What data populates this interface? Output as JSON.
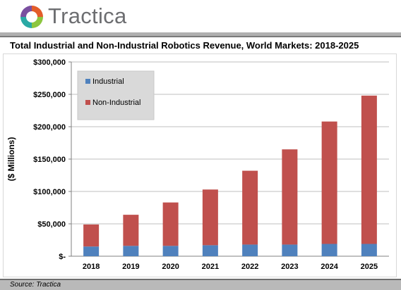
{
  "header": {
    "brand": "Tractica"
  },
  "source": "Source: Tractica",
  "colors": {
    "industrial": "#4f81bd",
    "non_industrial": "#c0504d"
  },
  "chart_data": {
    "type": "bar",
    "stacked": true,
    "title": "Total Industrial and Non-Industrial Robotics Revenue, World Markets: 2018-2025",
    "xlabel": "",
    "ylabel": "($ Millions)",
    "categories": [
      "2018",
      "2019",
      "2020",
      "2021",
      "2022",
      "2023",
      "2024",
      "2025"
    ],
    "series": [
      {
        "name": "Industrial",
        "values": [
          15000,
          16000,
          16000,
          17000,
          18000,
          18000,
          19000,
          19000
        ]
      },
      {
        "name": "Non-Industrial",
        "values": [
          34000,
          48000,
          67000,
          86000,
          114000,
          147000,
          189000,
          229000
        ]
      }
    ],
    "ylim": [
      0,
      300000
    ],
    "yticks": [
      0,
      50000,
      100000,
      150000,
      200000,
      250000,
      300000
    ],
    "ytick_labels": [
      "$-",
      "$50,000",
      "$100,000",
      "$150,000",
      "$200,000",
      "$250,000",
      "$300,000"
    ],
    "grid": true,
    "legend_placement": "top-left"
  }
}
